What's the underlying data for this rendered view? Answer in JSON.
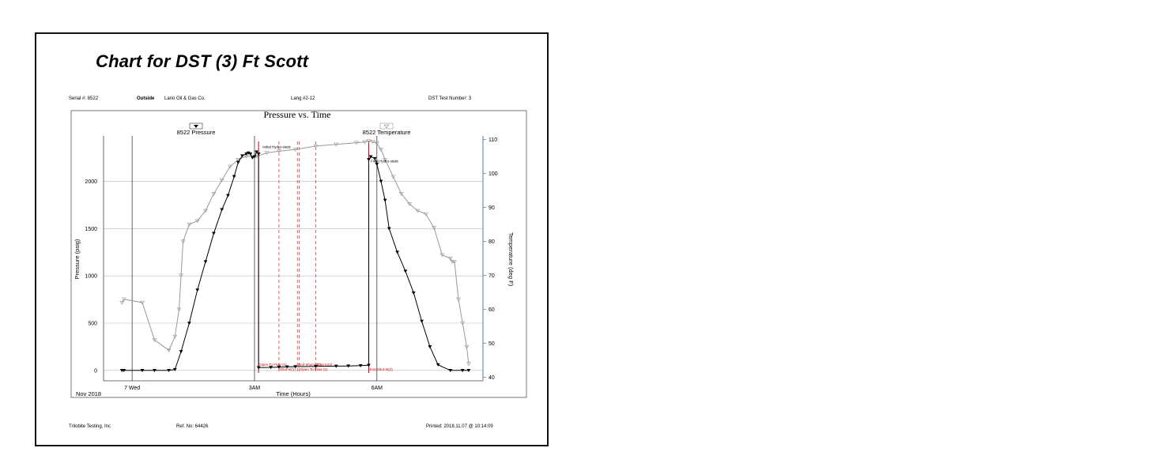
{
  "page_title": "Chart for DST (3) Ft Scott",
  "header": {
    "serial": "Serial #:  8522",
    "position": "Outside",
    "company": "Lario Oil & Gas Co.",
    "lease": "Lang #2-12",
    "test_number": "DST Test Number: 3"
  },
  "footer": {
    "company": "Trilobite Testing, Inc",
    "ref": "Ref. No:   64426",
    "printed": "Printed: 2018.11.07 @ 10:14:09"
  },
  "chart_data": {
    "type": "line",
    "title": "Pressure vs. Time",
    "xlabel": "Time (Hours)",
    "ylabel": "Pressure (psig)",
    "y2label": "Temperature (deg F)",
    "date_label": "Nov 2018",
    "x_unit": "hours after midnight Nov 7 2018",
    "xlim": [
      -0.7,
      8.6
    ],
    "ylim": [
      -110,
      2480
    ],
    "y2lim": [
      39,
      111
    ],
    "x_ticks": [
      {
        "x": 0,
        "label": "7 Wed"
      },
      {
        "x": 3,
        "label": "3AM"
      },
      {
        "x": 6,
        "label": "6AM"
      }
    ],
    "y_ticks": [
      0,
      500,
      1000,
      1500,
      2000
    ],
    "y2_ticks": [
      40,
      50,
      60,
      70,
      80,
      90,
      100,
      110
    ],
    "grid": true,
    "legend": [
      {
        "name": "8522 Pressure",
        "marker": "filled-triangle",
        "placement": "top-left"
      },
      {
        "name": "8522 Temperature",
        "marker": "hollow-triangle",
        "placement": "top-right"
      }
    ],
    "series": [
      {
        "name": "8522 Pressure",
        "axis": "left",
        "color": "#000000",
        "x": [
          -0.25,
          -0.2,
          0.25,
          0.55,
          0.9,
          1.05,
          1.2,
          1.4,
          1.6,
          1.8,
          2.0,
          2.2,
          2.35,
          2.5,
          2.6,
          2.7,
          2.8,
          2.85,
          2.9,
          2.95,
          3.0,
          3.05,
          3.1,
          3.1,
          3.4,
          3.6,
          3.8,
          4.0,
          4.5,
          5.0,
          5.3,
          5.6,
          5.8,
          5.8,
          5.85,
          5.95,
          6.0,
          6.1,
          6.2,
          6.3,
          6.5,
          6.7,
          6.9,
          7.1,
          7.3,
          7.5,
          7.8,
          8.1,
          8.25
        ],
        "y": [
          0,
          0,
          0,
          0,
          0,
          10,
          200,
          500,
          850,
          1150,
          1450,
          1700,
          1850,
          2050,
          2200,
          2270,
          2290,
          2300,
          2290,
          2250,
          2260,
          2310,
          2290,
          30,
          32,
          35,
          38,
          40,
          42,
          45,
          47,
          50,
          55,
          2230,
          2260,
          2240,
          2180,
          2000,
          1800,
          1500,
          1250,
          1050,
          820,
          520,
          250,
          60,
          0,
          0,
          0
        ]
      },
      {
        "name": "8522 Temperature",
        "axis": "right",
        "color": "#999999",
        "x": [
          -0.25,
          -0.2,
          0.25,
          0.55,
          0.9,
          1.05,
          1.15,
          1.2,
          1.25,
          1.4,
          1.6,
          1.8,
          2.0,
          2.2,
          2.4,
          2.6,
          2.8,
          3.05,
          3.3,
          3.6,
          4.0,
          4.5,
          5.0,
          5.5,
          5.7,
          5.8,
          5.9,
          6.0,
          6.1,
          6.2,
          6.4,
          6.6,
          6.8,
          7.0,
          7.2,
          7.4,
          7.6,
          7.8,
          7.85,
          7.9,
          8.0,
          8.1,
          8.2,
          8.25
        ],
        "y": [
          62,
          63,
          62,
          51,
          48,
          52,
          60,
          70,
          80,
          85,
          86,
          89,
          94,
          98,
          102,
          104,
          105,
          105,
          106,
          106.5,
          107,
          108,
          108.5,
          109,
          109.2,
          109.5,
          109.3,
          108.8,
          107,
          104,
          99,
          94,
          91,
          89,
          88,
          84,
          76,
          75,
          74,
          74,
          63,
          56,
          49,
          44
        ]
      }
    ],
    "vertical_markers": [
      {
        "x": 3.1,
        "style": "solid",
        "label": "Open To Flow (1)",
        "color": "#cc0000"
      },
      {
        "x": 3.6,
        "style": "dashed",
        "label": "Shut-In(1)",
        "color": "#cc0000"
      },
      {
        "x": 4.05,
        "style": "dashed",
        "label": "End Shut-In(1)",
        "color": "#cc0000"
      },
      {
        "x": 4.1,
        "style": "dashed",
        "label": "Open To Flow (2)",
        "color": "#cc0000"
      },
      {
        "x": 4.5,
        "style": "dashed",
        "label": "Shut-In(2)",
        "color": "#cc0000"
      },
      {
        "x": 5.8,
        "style": "solid",
        "label": "End Shut-In(2)",
        "color": "#cc0000"
      }
    ],
    "annotations": [
      {
        "text": "Initial Hydro-static",
        "x": 3.2,
        "y": 2350
      },
      {
        "text": "Final Hydro-static",
        "x": 5.85,
        "y": 2200
      }
    ]
  }
}
